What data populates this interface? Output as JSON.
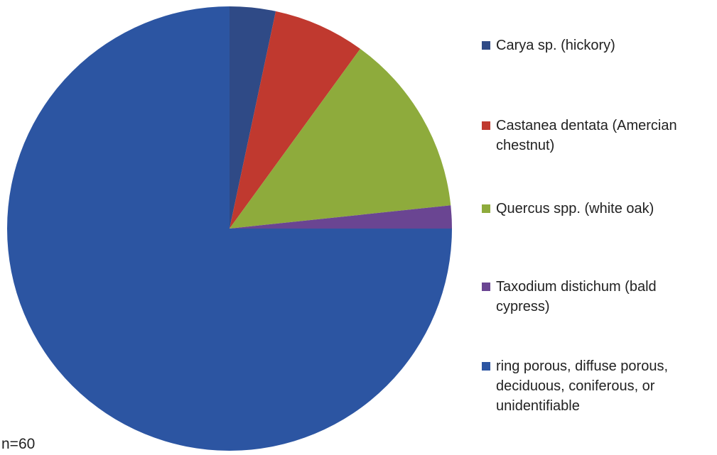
{
  "chart_data": {
    "type": "pie",
    "annotation": "n=60",
    "categories": [
      "Carya sp. (hickory)",
      "Castanea dentata (Amercian chestnut)",
      "Quercus spp. (white oak)",
      "Taxodium distichum (bald cypress)",
      "ring porous, diffuse porous, deciduous, coniferous, or unidentifiable"
    ],
    "values": [
      2,
      4,
      8,
      1,
      45
    ],
    "colors": [
      "#2f4a86",
      "#c0392f",
      "#8eab3c",
      "#6a4592",
      "#2c55a2"
    ],
    "legend": "right"
  }
}
